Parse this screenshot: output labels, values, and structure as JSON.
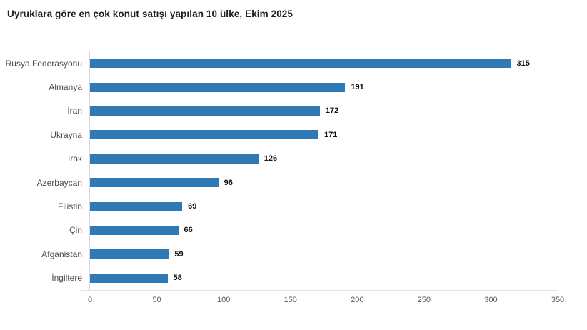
{
  "chart_data": {
    "type": "bar",
    "orientation": "horizontal",
    "title": "Uyruklara göre en çok konut satışı yapılan 10 ülke, Ekim 2025",
    "categories": [
      "Rusya Federasyonu",
      "Almanya",
      "İran",
      "Ukrayna",
      "Irak",
      "Azerbaycan",
      "Filistin",
      "Çin",
      "Afganistan",
      "İngiltere"
    ],
    "values": [
      315,
      191,
      172,
      171,
      126,
      96,
      69,
      66,
      59,
      58
    ],
    "xlabel": "",
    "ylabel": "",
    "xlim": [
      0,
      350
    ],
    "xticks": [
      0,
      50,
      100,
      150,
      200,
      250,
      300,
      350
    ],
    "grid": false,
    "legend": false,
    "value_labels": true,
    "bar_color": "#2F79B6",
    "colors": {
      "background": "#ffffff",
      "title_text": "#1f1f1f",
      "category_text": "#4a4a4a",
      "value_text": "#111111",
      "tick_text": "#595959",
      "axis_line": "#d9d9d9"
    }
  }
}
